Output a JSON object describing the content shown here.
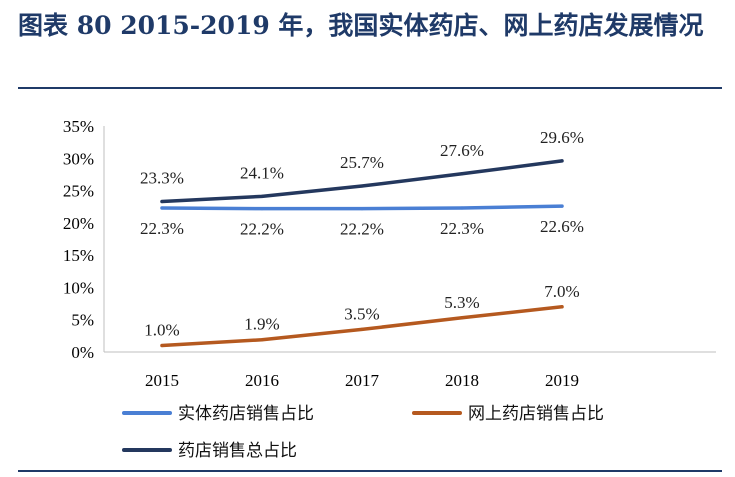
{
  "title": "图表 80   2015-2019 年，我国实体药店、网上药店发展情况",
  "chart_data": {
    "type": "line",
    "x": [
      "2015",
      "2016",
      "2017",
      "2018",
      "2019"
    ],
    "yticks": [
      "0%",
      "5%",
      "10%",
      "15%",
      "20%",
      "25%",
      "30%",
      "35%"
    ],
    "ylim": [
      0,
      35
    ],
    "unit": "%",
    "grid": false,
    "legend_position": "bottom",
    "series": [
      {
        "name": "实体药店销售占比",
        "values": [
          22.3,
          22.2,
          22.2,
          22.3,
          22.6
        ],
        "labels": [
          "22.3%",
          "22.2%",
          "22.2%",
          "22.3%",
          "22.6%"
        ],
        "color": "#4a7fd4"
      },
      {
        "name": "网上药店销售占比",
        "values": [
          1.0,
          1.9,
          3.5,
          5.3,
          7.0
        ],
        "labels": [
          "1.0%",
          "1.9%",
          "3.5%",
          "5.3%",
          "7.0%"
        ],
        "color": "#b5591f"
      },
      {
        "name": "药店销售总占比",
        "values": [
          23.3,
          24.1,
          25.7,
          27.6,
          29.6
        ],
        "labels": [
          "23.3%",
          "24.1%",
          "25.7%",
          "27.6%",
          "29.6%"
        ],
        "color": "#24385e"
      }
    ]
  }
}
